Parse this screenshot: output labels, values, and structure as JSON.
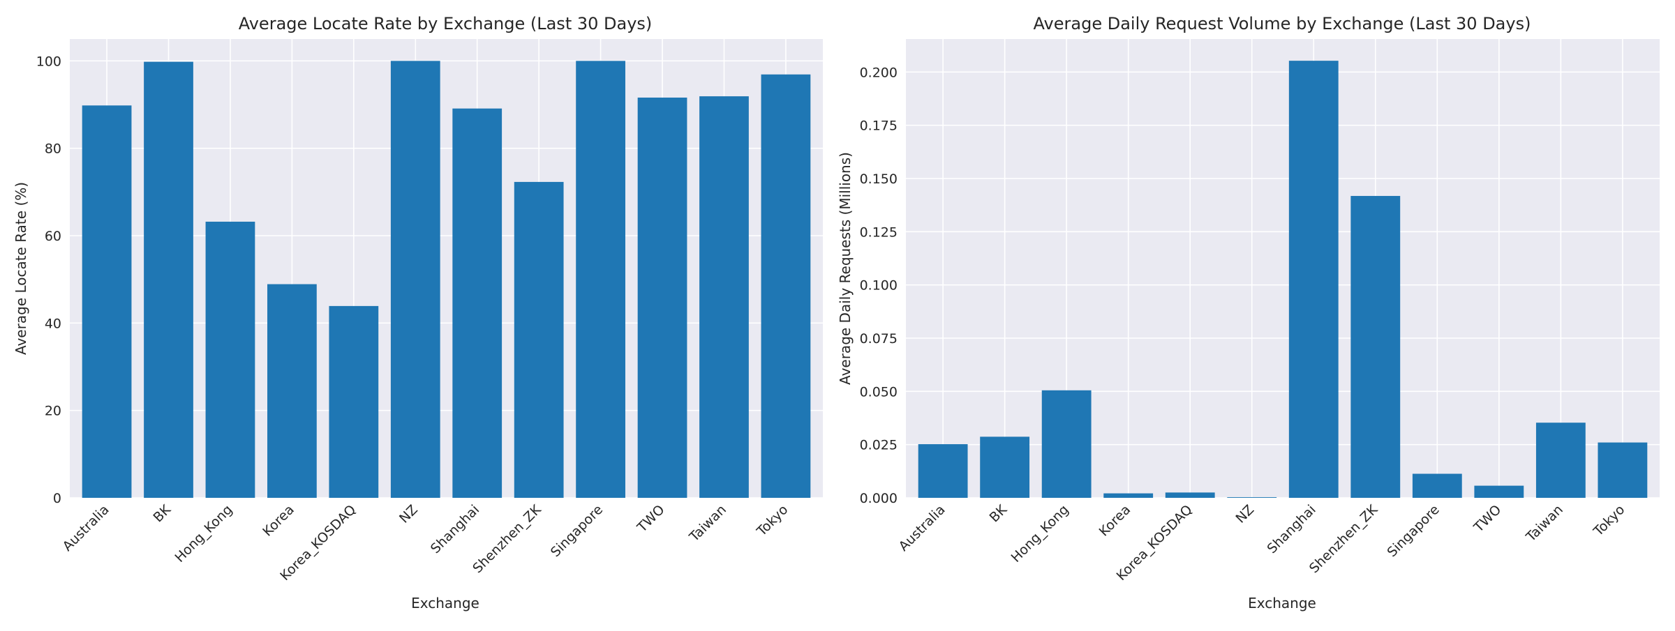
{
  "chart_data": [
    {
      "type": "bar",
      "title": "Average Locate Rate by Exchange (Last 30 Days)",
      "xlabel": "Exchange",
      "ylabel": "Average Locate Rate (%)",
      "categories": [
        "Australia",
        "BK",
        "Hong_Kong",
        "Korea",
        "Korea_KOSDAQ",
        "NZ",
        "Shanghai",
        "Shenzhen_ZK",
        "Singapore",
        "TWO",
        "Taiwan",
        "Tokyo"
      ],
      "values": [
        89.8,
        99.8,
        63.2,
        48.9,
        43.9,
        100.0,
        89.1,
        72.3,
        100.0,
        91.6,
        91.9,
        96.9
      ],
      "ylim": [
        0,
        105
      ],
      "yticks": [
        0,
        20,
        40,
        60,
        80,
        100
      ],
      "ytick_labels": [
        "0",
        "20",
        "40",
        "60",
        "80",
        "100"
      ],
      "grid": true,
      "color": "#1f77b4"
    },
    {
      "type": "bar",
      "title": "Average Daily Request Volume by Exchange (Last 30 Days)",
      "xlabel": "Exchange",
      "ylabel": "Average Daily Requests (Millions)",
      "categories": [
        "Australia",
        "BK",
        "Hong_Kong",
        "Korea",
        "Korea_KOSDAQ",
        "NZ",
        "Shanghai",
        "Shenzhen_ZK",
        "Singapore",
        "TWO",
        "Taiwan",
        "Tokyo"
      ],
      "values": [
        0.0252,
        0.0287,
        0.0505,
        0.0021,
        0.0025,
        0.0003,
        0.2053,
        0.1418,
        0.0113,
        0.0057,
        0.0353,
        0.026
      ],
      "ylim": [
        0,
        0.2155
      ],
      "yticks": [
        0,
        0.025,
        0.05,
        0.075,
        0.1,
        0.125,
        0.15,
        0.175,
        0.2
      ],
      "ytick_labels": [
        "0.000",
        "0.025",
        "0.050",
        "0.075",
        "0.100",
        "0.125",
        "0.150",
        "0.175",
        "0.200"
      ],
      "grid": true,
      "color": "#1f77b4"
    }
  ]
}
